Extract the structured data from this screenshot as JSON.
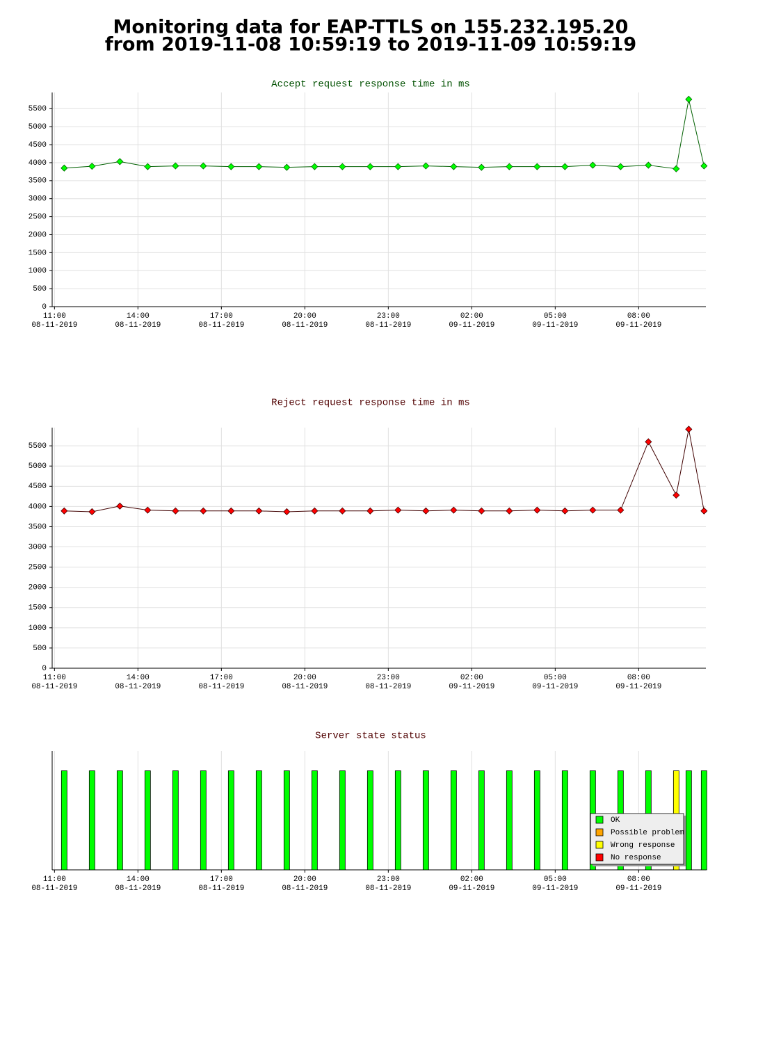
{
  "title": [
    "Monitoring data for EAP-TTLS on 155.232.195.20",
    "from 2019-11-08 10:59:19 to 2019-11-09 10:59:19"
  ],
  "chart_data": [
    {
      "type": "line",
      "title": "Accept request response time in ms",
      "title_color": "#005000",
      "x": [
        "2019-11-08 11:21",
        "2019-11-08 12:21",
        "2019-11-08 13:21",
        "2019-11-08 14:21",
        "2019-11-08 15:21",
        "2019-11-08 16:21",
        "2019-11-08 17:21",
        "2019-11-08 18:21",
        "2019-11-08 19:21",
        "2019-11-08 20:21",
        "2019-11-08 21:21",
        "2019-11-08 22:21",
        "2019-11-08 23:21",
        "2019-11-09 00:21",
        "2019-11-09 01:21",
        "2019-11-09 02:21",
        "2019-11-09 03:21",
        "2019-11-09 04:21",
        "2019-11-09 05:21",
        "2019-11-09 06:21",
        "2019-11-09 07:21",
        "2019-11-09 08:21",
        "2019-11-09 09:21",
        "2019-11-09 09:48",
        "2019-11-09 10:21"
      ],
      "xlim": [
        "2019-11-08 10:55",
        "2019-11-09 10:25"
      ],
      "xticks": [
        {
          "value": "2019-11-08 11:00",
          "label": [
            "11:00",
            "08-11-2019"
          ]
        },
        {
          "value": "2019-11-08 14:00",
          "label": [
            "14:00",
            "08-11-2019"
          ]
        },
        {
          "value": "2019-11-08 17:00",
          "label": [
            "17:00",
            "08-11-2019"
          ]
        },
        {
          "value": "2019-11-08 20:00",
          "label": [
            "20:00",
            "08-11-2019"
          ]
        },
        {
          "value": "2019-11-08 23:00",
          "label": [
            "23:00",
            "08-11-2019"
          ]
        },
        {
          "value": "2019-11-09 02:00",
          "label": [
            "02:00",
            "09-11-2019"
          ]
        },
        {
          "value": "2019-11-09 05:00",
          "label": [
            "05:00",
            "09-11-2019"
          ]
        },
        {
          "value": "2019-11-09 08:00",
          "label": [
            "08:00",
            "09-11-2019"
          ]
        }
      ],
      "ylim": [
        0,
        5950
      ],
      "yticks": [
        0,
        500,
        1000,
        1500,
        2000,
        2500,
        3000,
        3500,
        4000,
        4500,
        5000,
        5500
      ],
      "grid": true,
      "series": [
        {
          "color": "#006000",
          "marker_color": "#00ff00",
          "values": [
            3850,
            3900,
            4030,
            3890,
            3910,
            3910,
            3890,
            3890,
            3870,
            3890,
            3890,
            3890,
            3890,
            3910,
            3890,
            3870,
            3890,
            3890,
            3890,
            3930,
            3890,
            3930,
            3830,
            5760,
            3910
          ]
        }
      ]
    },
    {
      "type": "line",
      "title": "Reject request response time in ms",
      "title_color": "#500000",
      "x": [
        "2019-11-08 11:21",
        "2019-11-08 12:21",
        "2019-11-08 13:21",
        "2019-11-08 14:21",
        "2019-11-08 15:21",
        "2019-11-08 16:21",
        "2019-11-08 17:21",
        "2019-11-08 18:21",
        "2019-11-08 19:21",
        "2019-11-08 20:21",
        "2019-11-08 21:21",
        "2019-11-08 22:21",
        "2019-11-08 23:21",
        "2019-11-09 00:21",
        "2019-11-09 01:21",
        "2019-11-09 02:21",
        "2019-11-09 03:21",
        "2019-11-09 04:21",
        "2019-11-09 05:21",
        "2019-11-09 06:21",
        "2019-11-09 07:21",
        "2019-11-09 08:21",
        "2019-11-09 09:21",
        "2019-11-09 09:48",
        "2019-11-09 10:21"
      ],
      "xlim": [
        "2019-11-08 10:55",
        "2019-11-09 10:25"
      ],
      "xticks": [
        {
          "value": "2019-11-08 11:00",
          "label": [
            "11:00",
            "08-11-2019"
          ]
        },
        {
          "value": "2019-11-08 14:00",
          "label": [
            "14:00",
            "08-11-2019"
          ]
        },
        {
          "value": "2019-11-08 17:00",
          "label": [
            "17:00",
            "08-11-2019"
          ]
        },
        {
          "value": "2019-11-08 20:00",
          "label": [
            "20:00",
            "08-11-2019"
          ]
        },
        {
          "value": "2019-11-08 23:00",
          "label": [
            "23:00",
            "08-11-2019"
          ]
        },
        {
          "value": "2019-11-09 02:00",
          "label": [
            "02:00",
            "09-11-2019"
          ]
        },
        {
          "value": "2019-11-09 05:00",
          "label": [
            "05:00",
            "09-11-2019"
          ]
        },
        {
          "value": "2019-11-09 08:00",
          "label": [
            "08:00",
            "09-11-2019"
          ]
        }
      ],
      "ylim": [
        0,
        5950
      ],
      "yticks": [
        0,
        500,
        1000,
        1500,
        2000,
        2500,
        3000,
        3500,
        4000,
        4500,
        5000,
        5500
      ],
      "grid": true,
      "series": [
        {
          "color": "#400000",
          "marker_color": "#ff0000",
          "values": [
            3890,
            3870,
            4010,
            3910,
            3890,
            3890,
            3890,
            3890,
            3870,
            3890,
            3890,
            3890,
            3910,
            3890,
            3910,
            3890,
            3890,
            3910,
            3890,
            3910,
            3910,
            5600,
            4280,
            5910,
            3890
          ]
        }
      ]
    },
    {
      "type": "bar",
      "title": "Server state status",
      "title_color": "#500000",
      "x": [
        "2019-11-08 11:21",
        "2019-11-08 12:21",
        "2019-11-08 13:21",
        "2019-11-08 14:21",
        "2019-11-08 15:21",
        "2019-11-08 16:21",
        "2019-11-08 17:21",
        "2019-11-08 18:21",
        "2019-11-08 19:21",
        "2019-11-08 20:21",
        "2019-11-08 21:21",
        "2019-11-08 22:21",
        "2019-11-08 23:21",
        "2019-11-09 00:21",
        "2019-11-09 01:21",
        "2019-11-09 02:21",
        "2019-11-09 03:21",
        "2019-11-09 04:21",
        "2019-11-09 05:21",
        "2019-11-09 06:21",
        "2019-11-09 07:21",
        "2019-11-09 08:21",
        "2019-11-09 09:21",
        "2019-11-09 09:48",
        "2019-11-09 10:21"
      ],
      "xlim": [
        "2019-11-08 10:55",
        "2019-11-09 10:25"
      ],
      "xticks": [
        {
          "value": "2019-11-08 11:00",
          "label": [
            "11:00",
            "08-11-2019"
          ]
        },
        {
          "value": "2019-11-08 14:00",
          "label": [
            "14:00",
            "08-11-2019"
          ]
        },
        {
          "value": "2019-11-08 17:00",
          "label": [
            "17:00",
            "08-11-2019"
          ]
        },
        {
          "value": "2019-11-08 20:00",
          "label": [
            "20:00",
            "08-11-2019"
          ]
        },
        {
          "value": "2019-11-08 23:00",
          "label": [
            "23:00",
            "08-11-2019"
          ]
        },
        {
          "value": "2019-11-09 02:00",
          "label": [
            "02:00",
            "09-11-2019"
          ]
        },
        {
          "value": "2019-11-09 05:00",
          "label": [
            "05:00",
            "09-11-2019"
          ]
        },
        {
          "value": "2019-11-09 08:00",
          "label": [
            "08:00",
            "09-11-2019"
          ]
        }
      ],
      "ylim": [
        0,
        1.2
      ],
      "grid": true,
      "legend": "lower right",
      "series": [
        {
          "name": "OK",
          "color": "#00ff00",
          "values": [
            1,
            1,
            1,
            1,
            1,
            1,
            1,
            1,
            1,
            1,
            1,
            1,
            1,
            1,
            1,
            1,
            1,
            1,
            1,
            1,
            1,
            1,
            null,
            1,
            1
          ]
        },
        {
          "name": "Possible problem",
          "color": "#ffa500",
          "values": [
            null,
            null,
            null,
            null,
            null,
            null,
            null,
            null,
            null,
            null,
            null,
            null,
            null,
            null,
            null,
            null,
            null,
            null,
            null,
            null,
            null,
            null,
            null,
            null,
            null
          ]
        },
        {
          "name": "Wrong response",
          "color": "#ffff00",
          "values": [
            null,
            null,
            null,
            null,
            null,
            null,
            null,
            null,
            null,
            null,
            null,
            null,
            null,
            null,
            null,
            null,
            null,
            null,
            null,
            null,
            null,
            null,
            1,
            null,
            null
          ]
        },
        {
          "name": "No response",
          "color": "#ff0000",
          "values": [
            null,
            null,
            null,
            null,
            null,
            null,
            null,
            null,
            null,
            null,
            null,
            null,
            null,
            null,
            null,
            null,
            null,
            null,
            null,
            null,
            null,
            null,
            null,
            null,
            null
          ]
        }
      ]
    }
  ]
}
